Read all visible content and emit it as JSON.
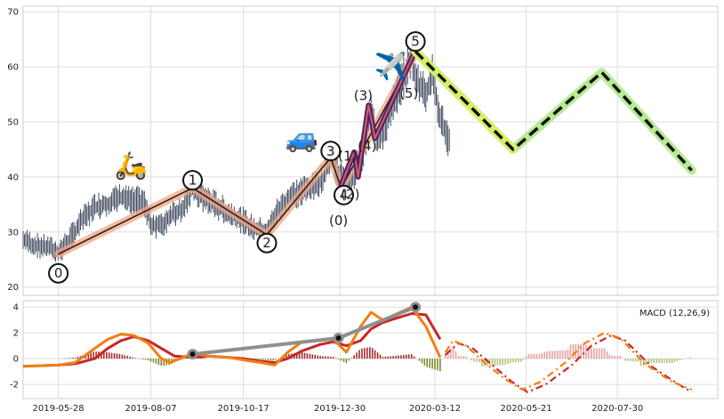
{
  "chart_data": [
    {
      "type": "line",
      "panel": "price",
      "x_start": "2019-05-01",
      "x_end": "2020-10-15",
      "ylim": [
        18.5,
        71
      ],
      "yticks": [
        20,
        30,
        40,
        50,
        60,
        70
      ],
      "grid": true,
      "price": [
        [
          "2019-05-01",
          28.5
        ],
        [
          "2019-05-10",
          27.6
        ],
        [
          "2019-05-20",
          27.2
        ],
        [
          "2019-05-28",
          26.3
        ],
        [
          "2019-06-05",
          28.5
        ],
        [
          "2019-06-15",
          32.0
        ],
        [
          "2019-06-25",
          34.5
        ],
        [
          "2019-07-05",
          35.2
        ],
        [
          "2019-07-15",
          36.2
        ],
        [
          "2019-07-25",
          35.5
        ],
        [
          "2019-08-01",
          35.8
        ],
        [
          "2019-08-07",
          31.5
        ],
        [
          "2019-08-15",
          31.0
        ],
        [
          "2019-08-22",
          33.0
        ],
        [
          "2019-09-01",
          34.5
        ],
        [
          "2019-09-08",
          38.0
        ],
        [
          "2019-09-15",
          36.5
        ],
        [
          "2019-09-25",
          35.0
        ],
        [
          "2019-10-05",
          33.5
        ],
        [
          "2019-10-17",
          32.0
        ],
        [
          "2019-10-25",
          30.5
        ],
        [
          "2019-11-05",
          30.0
        ],
        [
          "2019-11-10",
          33.0
        ],
        [
          "2019-11-20",
          36.0
        ],
        [
          "2019-11-30",
          37.5
        ],
        [
          "2019-12-10",
          38.0
        ],
        [
          "2019-12-18",
          40.0
        ],
        [
          "2019-12-23",
          43.5
        ],
        [
          "2019-12-30",
          40.5
        ],
        [
          "2020-01-04",
          38.0
        ],
        [
          "2020-01-10",
          40.5
        ],
        [
          "2020-01-17",
          44.5
        ],
        [
          "2020-01-23",
          53.0
        ],
        [
          "2020-01-28",
          46.0
        ],
        [
          "2020-02-02",
          48.5
        ],
        [
          "2020-02-10",
          54.0
        ],
        [
          "2020-02-17",
          58.0
        ],
        [
          "2020-02-23",
          62.0
        ],
        [
          "2020-02-28",
          57.0
        ],
        [
          "2020-03-05",
          55.0
        ],
        [
          "2020-03-10",
          58.5
        ],
        [
          "2020-03-16",
          51.0
        ],
        [
          "2020-03-23",
          46.0
        ]
      ],
      "wave_labels": [
        {
          "text": "0",
          "x": "2019-05-28",
          "y": 22.5,
          "circled": true
        },
        {
          "text": "1",
          "x": "2019-09-08",
          "y": 39.4,
          "circled": true
        },
        {
          "text": "2",
          "x": "2019-11-04",
          "y": 28.0,
          "circled": true
        },
        {
          "text": "3",
          "x": "2019-12-23",
          "y": 44.7,
          "circled": true
        },
        {
          "text": "4",
          "x": "2020-01-02",
          "y": 36.7,
          "circled": true
        },
        {
          "text": "5",
          "x": "2020-02-26",
          "y": 64.6,
          "circled": true
        },
        {
          "text": "(1)",
          "x": "2020-01-05",
          "y": 43.8,
          "circled": false
        },
        {
          "text": "(2)",
          "x": "2020-01-07",
          "y": 36.8,
          "circled": false
        },
        {
          "text": "(3)",
          "x": "2020-01-17",
          "y": 54.8,
          "circled": false
        },
        {
          "text": "(4)",
          "x": "2020-01-20",
          "y": 45.6,
          "circled": false
        },
        {
          "text": "(5)",
          "x": "2020-02-21",
          "y": 55.2,
          "circled": false
        },
        {
          "text": "(0)",
          "x": "2019-12-29",
          "y": 32.1,
          "circled": false
        }
      ],
      "primary_wave": [
        [
          "2019-05-28",
          26.0
        ],
        [
          "2019-09-08",
          38.0
        ],
        [
          "2019-11-04",
          29.5
        ],
        [
          "2019-12-23",
          43.5
        ],
        [
          "2019-12-31",
          38.0
        ],
        [
          "2020-02-26",
          62.5
        ]
      ],
      "sub_wave": [
        [
          "2019-12-31",
          38.5
        ],
        [
          "2020-01-10",
          44.5
        ],
        [
          "2020-01-13",
          40.0
        ],
        [
          "2020-01-21",
          53.0
        ],
        [
          "2020-01-26",
          47.0
        ],
        [
          "2020-02-26",
          63.0
        ]
      ],
      "forecast_wave": [
        [
          "2020-02-26",
          62.8
        ],
        [
          "2020-05-11",
          45.0
        ],
        [
          "2020-07-18",
          59.0
        ],
        [
          "2020-09-25",
          41.2
        ]
      ],
      "icons": [
        {
          "icon": "scooter-emoji",
          "glyph": "🛵",
          "x": "2019-07-23",
          "y": 40.5
        },
        {
          "icon": "car-emoji",
          "glyph": "🚙",
          "x": "2019-12-01",
          "y": 45.5
        },
        {
          "icon": "airplane-emoji",
          "glyph": "✈️",
          "x": "2020-02-07",
          "y": 58.5
        }
      ],
      "colors": {
        "price": "#2f3b52",
        "primary_wave_glow": "#f4a582",
        "primary_wave": "#222222",
        "sub_wave_outer": "#4b1f7a",
        "sub_wave_inner": "#d6604d",
        "forecast_glow": "#a6e57a",
        "forecast_front": "#d9f066",
        "forecast": "#111111"
      }
    },
    {
      "type": "line",
      "panel": "macd",
      "legend": "MACD (12,26,9)",
      "legend_position": "top-right",
      "ylim": [
        -3.1,
        4.5
      ],
      "yticks": [
        -2,
        0,
        2,
        4
      ],
      "grid": true,
      "x_tick_labels": [
        "2019-05-28",
        "2019-08-07",
        "2019-10-17",
        "2019-12-30",
        "2020-03-12",
        "2020-05-21",
        "2020-07-30"
      ],
      "macd": [
        [
          "2019-05-01",
          -0.6
        ],
        [
          "2019-05-28",
          -0.5
        ],
        [
          "2019-06-10",
          -0.3
        ],
        [
          "2019-06-25",
          0.8
        ],
        [
          "2019-07-05",
          1.5
        ],
        [
          "2019-07-15",
          1.9
        ],
        [
          "2019-07-25",
          1.8
        ],
        [
          "2019-08-05",
          1.2
        ],
        [
          "2019-08-15",
          0.0
        ],
        [
          "2019-08-22",
          -0.3
        ],
        [
          "2019-09-08",
          0.4
        ],
        [
          "2019-09-20",
          0.2
        ],
        [
          "2019-10-05",
          0.1
        ],
        [
          "2019-10-17",
          -0.1
        ],
        [
          "2019-10-30",
          -0.3
        ],
        [
          "2019-11-10",
          -0.5
        ],
        [
          "2019-11-20",
          0.5
        ],
        [
          "2019-12-01",
          1.3
        ],
        [
          "2019-12-15",
          1.4
        ],
        [
          "2019-12-25",
          1.5
        ],
        [
          "2020-01-04",
          0.5
        ],
        [
          "2020-01-15",
          2.5
        ],
        [
          "2020-01-23",
          3.6
        ],
        [
          "2020-02-01",
          3.0
        ],
        [
          "2020-02-10",
          3.4
        ],
        [
          "2020-02-23",
          4.0
        ],
        [
          "2020-03-05",
          2.5
        ],
        [
          "2020-03-16",
          0.1
        ]
      ],
      "signal": [
        [
          "2019-05-01",
          -0.6
        ],
        [
          "2019-05-28",
          -0.5
        ],
        [
          "2019-06-10",
          -0.4
        ],
        [
          "2019-06-25",
          0.0
        ],
        [
          "2019-07-05",
          0.8
        ],
        [
          "2019-07-15",
          1.4
        ],
        [
          "2019-07-25",
          1.7
        ],
        [
          "2019-08-05",
          1.4
        ],
        [
          "2019-08-15",
          0.8
        ],
        [
          "2019-08-25",
          0.2
        ],
        [
          "2019-09-08",
          0.1
        ],
        [
          "2019-09-20",
          0.2
        ],
        [
          "2019-10-05",
          0.1
        ],
        [
          "2019-10-17",
          0.0
        ],
        [
          "2019-10-30",
          -0.2
        ],
        [
          "2019-11-10",
          -0.3
        ],
        [
          "2019-11-20",
          0.0
        ],
        [
          "2019-12-01",
          0.6
        ],
        [
          "2019-12-15",
          1.1
        ],
        [
          "2019-12-25",
          1.3
        ],
        [
          "2020-01-04",
          1.0
        ],
        [
          "2020-01-15",
          1.4
        ],
        [
          "2020-01-23",
          2.3
        ],
        [
          "2020-02-01",
          2.8
        ],
        [
          "2020-02-10",
          3.1
        ],
        [
          "2020-02-23",
          3.5
        ],
        [
          "2020-03-05",
          3.4
        ],
        [
          "2020-03-16",
          1.5
        ]
      ],
      "forecast_macd": [
        [
          "2020-03-20",
          0.5
        ],
        [
          "2020-03-26",
          1.4
        ],
        [
          "2020-04-05",
          1.0
        ],
        [
          "2020-04-20",
          -0.4
        ],
        [
          "2020-05-05",
          -1.6
        ],
        [
          "2020-05-18",
          -2.4
        ],
        [
          "2020-06-01",
          -1.8
        ],
        [
          "2020-06-20",
          -0.3
        ],
        [
          "2020-07-05",
          1.2
        ],
        [
          "2020-07-20",
          2.0
        ],
        [
          "2020-08-01",
          1.6
        ],
        [
          "2020-08-20",
          -0.4
        ],
        [
          "2020-09-10",
          -1.8
        ],
        [
          "2020-09-25",
          -2.4
        ]
      ],
      "forecast_signal": [
        [
          "2020-03-20",
          0.3
        ],
        [
          "2020-03-30",
          1.2
        ],
        [
          "2020-04-10",
          0.8
        ],
        [
          "2020-04-25",
          -0.5
        ],
        [
          "2020-05-10",
          -1.8
        ],
        [
          "2020-05-22",
          -2.6
        ],
        [
          "2020-06-05",
          -2.0
        ],
        [
          "2020-06-25",
          -0.5
        ],
        [
          "2020-07-10",
          1.0
        ],
        [
          "2020-07-25",
          1.8
        ],
        [
          "2020-08-05",
          1.4
        ],
        [
          "2020-08-25",
          -0.6
        ],
        [
          "2020-09-15",
          -2.0
        ],
        [
          "2020-09-25",
          -2.6
        ]
      ],
      "divergence_line": [
        [
          "2019-09-08",
          0.35
        ],
        [
          "2019-12-29",
          1.6
        ],
        [
          "2020-02-26",
          4.0
        ]
      ],
      "colors": {
        "macd": "#f07f13",
        "signal": "#c62828",
        "hist_up": "#a52a2a",
        "hist_down": "#7a8c2b",
        "hist_up_forecast": "#e8a0a0",
        "hist_down_forecast": "#b5c27a",
        "divergence": "#8f8f8f",
        "divergence_marker": "#111111"
      }
    }
  ]
}
